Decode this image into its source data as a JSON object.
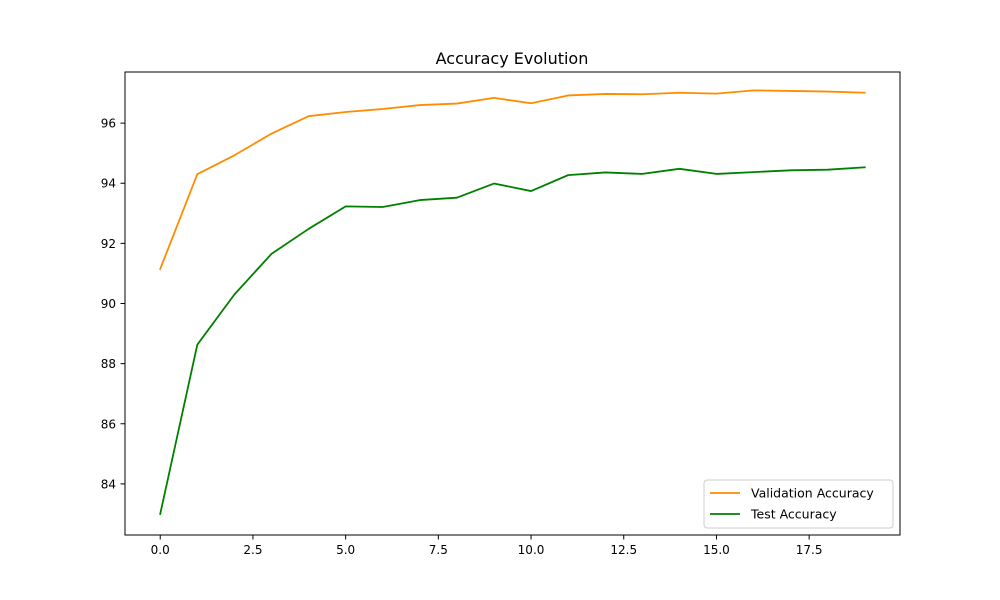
{
  "chart_data": {
    "type": "line",
    "title": "Accuracy Evolution",
    "xlabel": "",
    "ylabel": "",
    "xlim": [
      -0.95,
      19.95
    ],
    "ylim": [
      82.3,
      97.7
    ],
    "x_ticks": [
      0.0,
      2.5,
      5.0,
      7.5,
      10.0,
      12.5,
      15.0,
      17.5
    ],
    "x_tick_labels": [
      "0.0",
      "2.5",
      "5.0",
      "7.5",
      "10.0",
      "12.5",
      "15.0",
      "17.5"
    ],
    "y_ticks": [
      84,
      86,
      88,
      90,
      92,
      94,
      96
    ],
    "y_tick_labels": [
      "84",
      "86",
      "88",
      "90",
      "92",
      "94",
      "96"
    ],
    "grid": false,
    "legend_position": "lower-right",
    "x": [
      0,
      1,
      2,
      3,
      4,
      5,
      6,
      7,
      8,
      9,
      10,
      11,
      12,
      13,
      14,
      15,
      16,
      17,
      18,
      19
    ],
    "series": [
      {
        "name": "Validation Accuracy",
        "color": "#ff8c00",
        "values": [
          91.15,
          94.3,
          94.93,
          95.65,
          96.23,
          96.37,
          96.47,
          96.6,
          96.65,
          96.84,
          96.66,
          96.92,
          96.97,
          96.96,
          97.01,
          96.98,
          97.09,
          97.07,
          97.05,
          97.01
        ]
      },
      {
        "name": "Test Accuracy",
        "color": "#008000",
        "values": [
          83.0,
          88.63,
          90.3,
          91.65,
          92.48,
          93.23,
          93.21,
          93.44,
          93.52,
          93.99,
          93.74,
          94.27,
          94.36,
          94.31,
          94.48,
          94.31,
          94.37,
          94.43,
          94.45,
          94.53
        ]
      }
    ]
  }
}
